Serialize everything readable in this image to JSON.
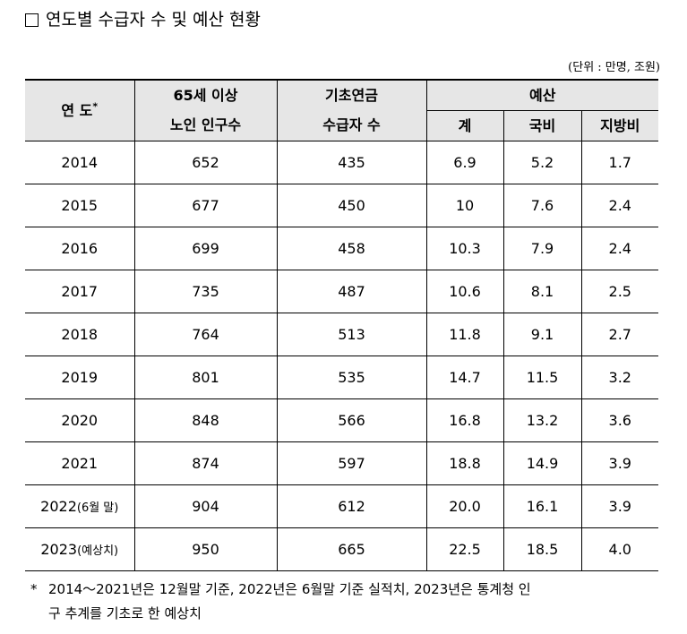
{
  "title": "연도별 수급자 수 및 예산 현황",
  "unit": "(단위 : 만명, 조원)",
  "headers": {
    "year": "연 도",
    "year_mark": "*",
    "elderly_line1": "65세 이상",
    "elderly_line2": "노인 인구수",
    "recipients_line1": "기초연금",
    "recipients_line2": "수급자 수",
    "budget": "예산",
    "total": "계",
    "national": "국비",
    "local": "지방비"
  },
  "rows": [
    {
      "year": "2014",
      "year_note": "",
      "elderly": "652",
      "recipients": "435",
      "total": "6.9",
      "national": "5.2",
      "local": "1.7"
    },
    {
      "year": "2015",
      "year_note": "",
      "elderly": "677",
      "recipients": "450",
      "total": "10",
      "national": "7.6",
      "local": "2.4"
    },
    {
      "year": "2016",
      "year_note": "",
      "elderly": "699",
      "recipients": "458",
      "total": "10.3",
      "national": "7.9",
      "local": "2.4"
    },
    {
      "year": "2017",
      "year_note": "",
      "elderly": "735",
      "recipients": "487",
      "total": "10.6",
      "national": "8.1",
      "local": "2.5"
    },
    {
      "year": "2018",
      "year_note": "",
      "elderly": "764",
      "recipients": "513",
      "total": "11.8",
      "national": "9.1",
      "local": "2.7"
    },
    {
      "year": "2019",
      "year_note": "",
      "elderly": "801",
      "recipients": "535",
      "total": "14.7",
      "national": "11.5",
      "local": "3.2"
    },
    {
      "year": "2020",
      "year_note": "",
      "elderly": "848",
      "recipients": "566",
      "total": "16.8",
      "national": "13.2",
      "local": "3.6"
    },
    {
      "year": "2021",
      "year_note": "",
      "elderly": "874",
      "recipients": "597",
      "total": "18.8",
      "national": "14.9",
      "local": "3.9"
    },
    {
      "year": "2022",
      "year_note": "(6월 말)",
      "elderly": "904",
      "recipients": "612",
      "total": "20.0",
      "national": "16.1",
      "local": "3.9"
    },
    {
      "year": "2023",
      "year_note": "(예상치)",
      "elderly": "950",
      "recipients": "665",
      "total": "22.5",
      "national": "18.5",
      "local": "4.0"
    }
  ],
  "footnote": {
    "mark": "*",
    "line1": "2014～2021년은 12월말 기준, 2022년은 6월말 기준 실적치, 2023년은 통계청 인",
    "line2": "구 추계를 기초로 한 예상치"
  }
}
